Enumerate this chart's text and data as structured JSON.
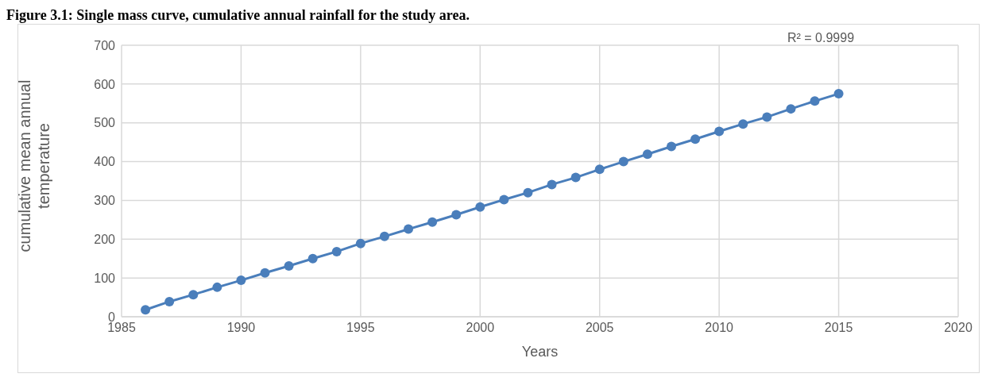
{
  "chart_data": {
    "type": "line",
    "title": "Figure 3.1: Single mass curve, cumulative annual rainfall for the study area.",
    "xlabel": "Years",
    "ylabel": "cumulative mean annual temperature",
    "annotations": [
      "R² = 0.9999"
    ],
    "x": [
      1986,
      1987,
      1988,
      1989,
      1990,
      1991,
      1992,
      1993,
      1994,
      1995,
      1996,
      1997,
      1998,
      1999,
      2000,
      2001,
      2002,
      2003,
      2004,
      2005,
      2006,
      2007,
      2008,
      2009,
      2010,
      2011,
      2012,
      2013,
      2014,
      2015
    ],
    "series": [
      {
        "color": "#4a7ebb",
        "values": [
          18,
          39,
          57,
          76,
          94,
          113,
          131,
          150,
          168,
          189,
          207,
          226,
          244,
          263,
          283,
          302,
          320,
          341,
          359,
          380,
          400,
          419,
          439,
          458,
          478,
          497,
          515,
          536,
          556,
          575
        ]
      }
    ],
    "xlim": [
      1985,
      2020
    ],
    "xticks": [
      1985,
      1990,
      1995,
      2000,
      2005,
      2010,
      2015,
      2020
    ],
    "ylim": [
      0,
      700
    ],
    "yticks": [
      0,
      100,
      200,
      300,
      400,
      500,
      600,
      700
    ],
    "grid": true,
    "legend": false,
    "marker": "circle",
    "line_style": "solid"
  }
}
